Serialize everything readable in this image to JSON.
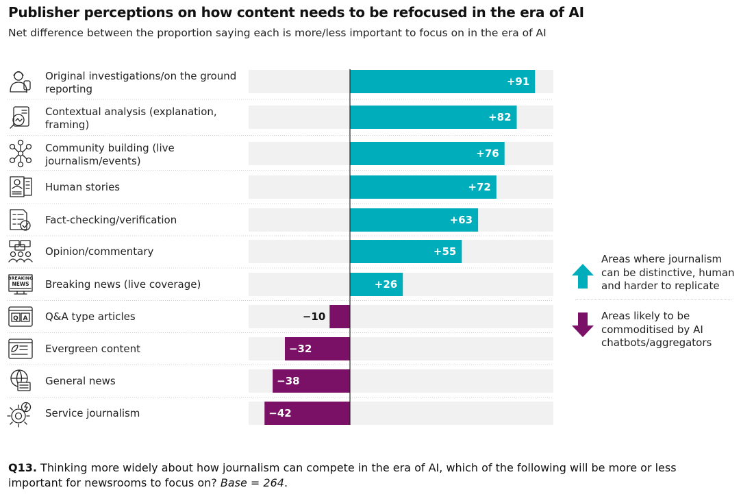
{
  "title": "Publisher perceptions on how content needs to be refocused in the era of AI",
  "subtitle": "Net difference between the proportion saying each is more/less important to focus on in the era of AI",
  "colors": {
    "positive": "#00adbb",
    "negative": "#7b1166",
    "track": "#f1f1f1"
  },
  "chart_data": {
    "type": "bar",
    "orientation": "horizontal",
    "categories": [
      [
        "Original investigations/on the ground",
        "reporting"
      ],
      [
        "Contextual analysis (explanation,",
        "framing)"
      ],
      [
        "Community building (live",
        "journalism/events)"
      ],
      [
        "Human stories"
      ],
      [
        "Fact-checking/verification"
      ],
      [
        "Opinion/commentary"
      ],
      [
        "Breaking news (live coverage)"
      ],
      [
        "Q&A type articles"
      ],
      [
        "Evergreen content"
      ],
      [
        "General news"
      ],
      [
        "Service journalism"
      ]
    ],
    "values": [
      91,
      82,
      76,
      72,
      63,
      55,
      26,
      -10,
      -32,
      -38,
      -42
    ],
    "value_labels": [
      "+91",
      "+82",
      "+76",
      "+72",
      "+63",
      "+55",
      "+26",
      "−10",
      "−32",
      "−38",
      "−42"
    ],
    "icons": [
      "reporter-icon",
      "analysis-icon",
      "community-icon",
      "human-stories-icon",
      "fact-check-icon",
      "opinion-icon",
      "breaking-news-icon",
      "qa-icon",
      "evergreen-icon",
      "general-news-icon",
      "service-icon"
    ],
    "xlim": [
      -50,
      100
    ]
  },
  "legend": {
    "up": [
      "Areas where journalism",
      "can be distinctive, human",
      "and harder to replicate"
    ],
    "down": [
      "Areas likely to be",
      "commoditised by AI",
      "chatbots/aggregators"
    ]
  },
  "footnote": {
    "question_id": "Q13.",
    "question_text": " Thinking more widely about how journalism can compete in the era of AI, which of the following will be more or less important for newsrooms to focus on? ",
    "base": "Base = 264",
    "end": "."
  }
}
